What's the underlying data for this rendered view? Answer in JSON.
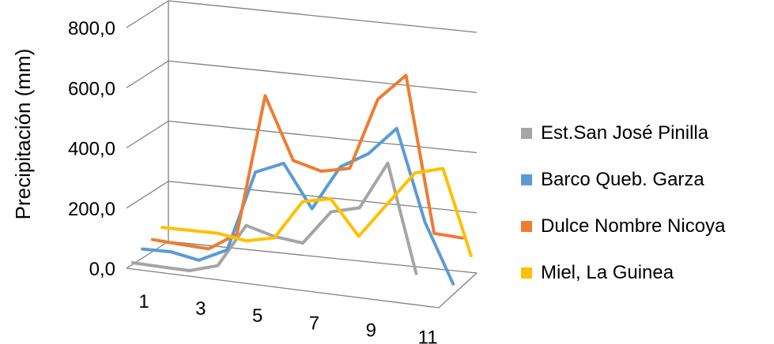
{
  "chart_data": {
    "type": "line",
    "style": "3d",
    "ylabel": "Precipitación (mm)",
    "ylim": [
      0,
      800
    ],
    "yticks": [
      "0,0",
      "200,0",
      "400,0",
      "600,0",
      "800,0"
    ],
    "x": [
      1,
      2,
      3,
      4,
      5,
      6,
      7,
      8,
      9,
      10,
      11,
      12
    ],
    "xtick_labels": [
      "1",
      "3",
      "5",
      "7",
      "9",
      "11"
    ],
    "grid": true,
    "legend_position": "right",
    "series": [
      {
        "name": "Est.San José Pinilla",
        "color": "#a5a5a5",
        "values": [
          5,
          3,
          2,
          30,
          175,
          150,
          140,
          255,
          280,
          440,
          85,
          null
        ]
      },
      {
        "name": "Barco Queb. Garza",
        "color": "#5b9bd5",
        "values": [
          30,
          32,
          15,
          60,
          330,
          370,
          230,
          380,
          435,
          530,
          230,
          35
        ]
      },
      {
        "name": "Dulce Nombre Nicoya",
        "color": "#ed7d31",
        "values": [
          40,
          35,
          30,
          90,
          560,
          355,
          330,
          350,
          590,
          680,
          165,
          160
        ]
      },
      {
        "name": "Miel, La Guinea",
        "color": "#ffc000",
        "values": [
          60,
          60,
          60,
          45,
          65,
          195,
          215,
          100,
          215,
          330,
          355,
          75
        ]
      }
    ]
  }
}
